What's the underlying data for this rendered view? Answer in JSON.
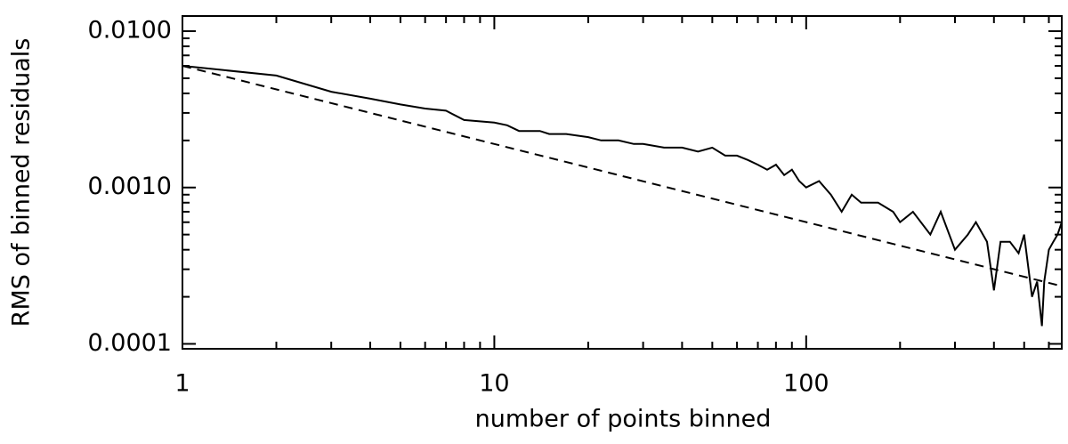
{
  "chart_data": {
    "type": "line",
    "xlabel": "number of points binned",
    "ylabel": "RMS of binned residuals",
    "xscale": "log",
    "yscale": "log",
    "xlim": [
      1,
      660
    ],
    "ylim": [
      9.3e-05,
      0.0125
    ],
    "xticks": [
      1,
      10,
      100
    ],
    "yticks": [
      {
        "value": 0.0001,
        "label": "0.0001"
      },
      {
        "value": 0.001,
        "label": "0.0010"
      },
      {
        "value": 0.01,
        "label": "0.0100"
      }
    ],
    "xminorticks": [
      2,
      3,
      4,
      5,
      6,
      7,
      8,
      9,
      20,
      30,
      40,
      50,
      60,
      70,
      80,
      90,
      200,
      300,
      400,
      500,
      600
    ],
    "yminorticks": [
      0.0002,
      0.0003,
      0.0004,
      0.0005,
      0.0006,
      0.0007,
      0.0008,
      0.0009,
      0.002,
      0.003,
      0.004,
      0.005,
      0.006,
      0.007,
      0.008,
      0.009
    ],
    "series": [
      {
        "color": "#000000",
        "dash": false,
        "x": [
          1,
          2,
          3,
          4,
          5,
          6,
          7,
          8,
          10,
          11,
          12,
          14,
          15,
          17,
          20,
          22,
          25,
          28,
          30,
          35,
          40,
          45,
          50,
          55,
          60,
          65,
          70,
          75,
          80,
          85,
          90,
          95,
          100,
          110,
          120,
          130,
          140,
          150,
          170,
          190,
          200,
          220,
          250,
          270,
          300,
          330,
          350,
          380,
          400,
          420,
          450,
          480,
          500,
          530,
          550,
          570,
          580,
          600,
          620,
          640,
          660
        ],
        "values": [
          0.006,
          0.0052,
          0.0041,
          0.0037,
          0.0034,
          0.0032,
          0.0031,
          0.0027,
          0.0026,
          0.0025,
          0.0023,
          0.0023,
          0.0022,
          0.0022,
          0.0021,
          0.002,
          0.002,
          0.0019,
          0.0019,
          0.0018,
          0.0018,
          0.0017,
          0.0018,
          0.0016,
          0.0016,
          0.0015,
          0.0014,
          0.0013,
          0.0014,
          0.0012,
          0.0013,
          0.0011,
          0.001,
          0.0011,
          0.0009,
          0.0007,
          0.0009,
          0.0008,
          0.0008,
          0.0007,
          0.0006,
          0.0007,
          0.0005,
          0.0007,
          0.0004,
          0.0005,
          0.0006,
          0.00045,
          0.00022,
          0.00045,
          0.00045,
          0.00038,
          0.0005,
          0.0002,
          0.00025,
          0.00013,
          0.00025,
          0.0004,
          0.00045,
          0.0005,
          0.0006
        ]
      },
      {
        "color": "#000000",
        "dash": true,
        "x": [
          1,
          660
        ],
        "values": [
          0.006,
          0.000234
        ]
      }
    ]
  }
}
